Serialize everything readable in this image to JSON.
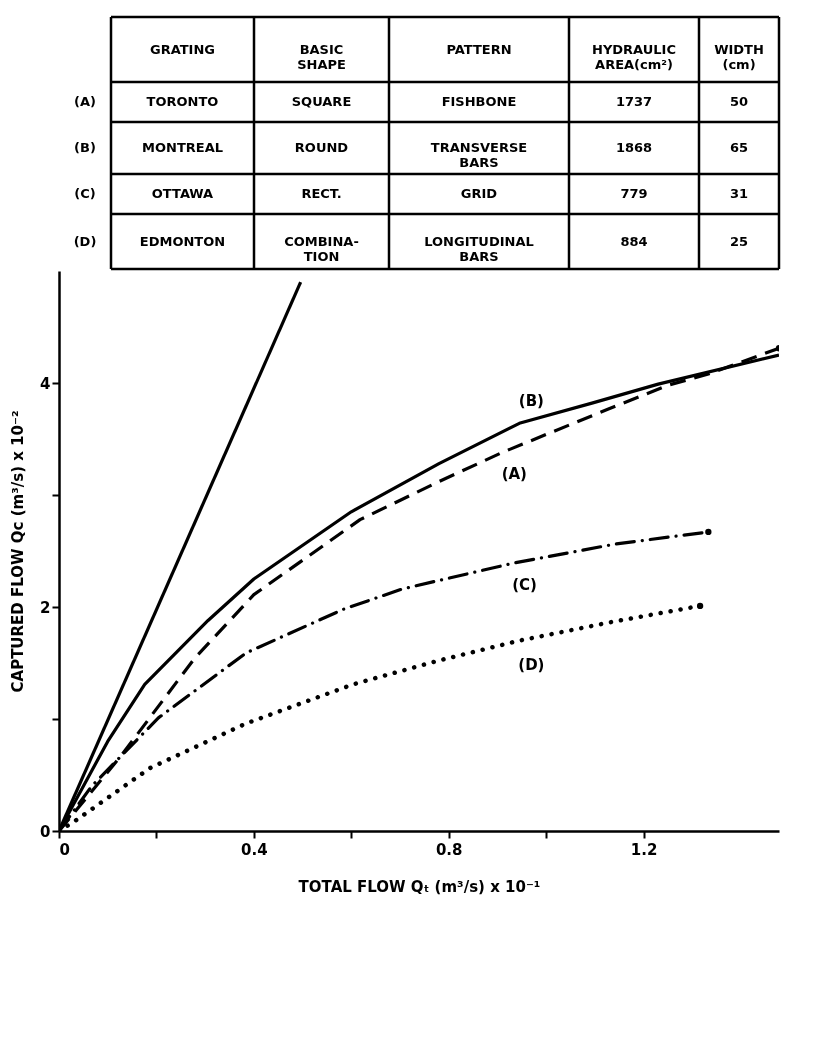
{
  "chart_data": {
    "type": "line",
    "xlabel": "TOTAL FLOW  Qₜ (m³/s) x 10⁻¹",
    "ylabel": "CAPTURED FLOW  Qc (m³/s) x 10⁻²",
    "xlim": [
      0,
      1.478
    ],
    "ylim": [
      0,
      5
    ],
    "xticks": [
      0,
      {
        "value": 0.2,
        "label": null
      },
      0.4,
      {
        "value": 0.6,
        "label": null
      },
      0.8,
      {
        "value": 1.0,
        "label": null
      },
      1.2
    ],
    "yticks": [
      0,
      {
        "value": 1,
        "label": null
      },
      2,
      {
        "value": 3,
        "label": null
      },
      4
    ],
    "grid": false,
    "marker": "none",
    "series": [
      {
        "color": "#000000",
        "line_style": "solid",
        "x": [
          0,
          0.496
        ],
        "values": [
          0,
          4.9
        ]
      },
      {
        "name": "(A)",
        "color": "#000000",
        "line_style": "dashed",
        "x": [
          0,
          0.129,
          0.278,
          0.4,
          0.618,
          0.78,
          0.91,
          1.129,
          1.25,
          1.333,
          1.478
        ],
        "values": [
          0,
          0.68,
          1.54,
          2.11,
          2.78,
          3.12,
          3.38,
          3.77,
          3.98,
          4.08,
          4.31
        ]
      },
      {
        "name": "(B)",
        "color": "#000000",
        "line_style": "solid",
        "x": [
          0,
          0.1,
          0.176,
          0.306,
          0.4,
          0.6,
          0.78,
          0.945,
          1.094,
          1.23,
          1.478
        ],
        "values": [
          0,
          0.8,
          1.31,
          1.88,
          2.25,
          2.85,
          3.28,
          3.64,
          3.82,
          3.99,
          4.25
        ]
      },
      {
        "name": "(C)",
        "color": "#000000",
        "line_style": "dashdot",
        "x": [
          0,
          0.067,
          0.204,
          0.384,
          0.584,
          0.704,
          0.931,
          1.139,
          1.333
        ],
        "values": [
          0,
          0.4,
          1.01,
          1.59,
          1.98,
          2.16,
          2.39,
          2.56,
          2.67
        ]
      },
      {
        "name": "(D)",
        "color": "#000000",
        "line_style": "dotted",
        "x": [
          0,
          0.033,
          0.186,
          0.384,
          0.604,
          0.778,
          0.945,
          1.139,
          1.316
        ],
        "values": [
          0,
          0.09,
          0.56,
          0.96,
          1.31,
          1.52,
          1.7,
          1.87,
          2.01
        ]
      }
    ],
    "annotations": [
      "GRATING",
      "BASIC\nSHAPE",
      "PATTERN",
      "HYDRAULIC\nAREA(cm²)",
      "WIDTH\n(cm)",
      "(A)",
      "TORONTO",
      "SQUARE",
      "FISHBONE",
      "1737",
      "50",
      "(B)",
      "MONTREAL",
      "ROUND",
      "TRANSVERSE\nBARS",
      "1868",
      "65",
      "(C)",
      "OTTAWA",
      "RECT.",
      "GRID",
      "779",
      "31",
      "(D)",
      "EDMONTON",
      "COMBINA-\nTION",
      "LONGITUDINAL\nBARS",
      "884",
      "25"
    ]
  }
}
